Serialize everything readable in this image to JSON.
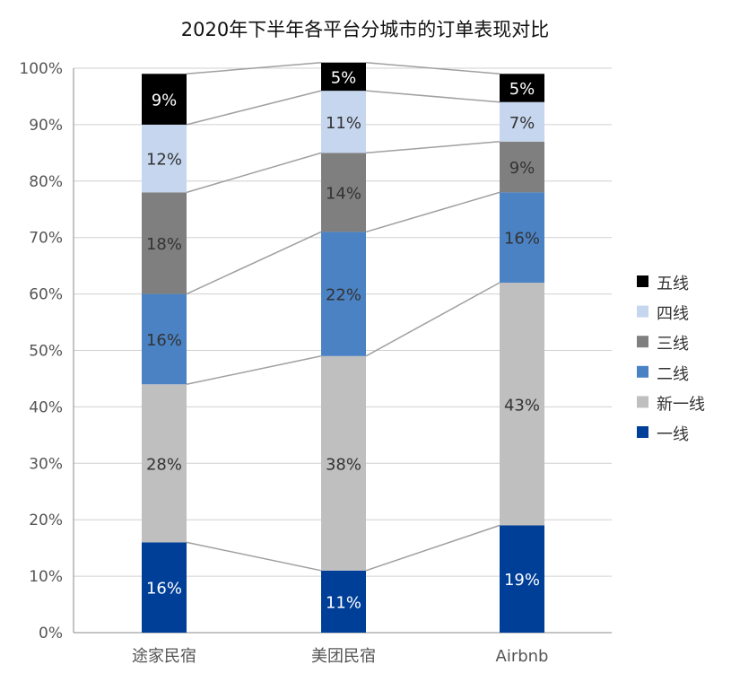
{
  "chart_data": {
    "type": "bar",
    "stacked": true,
    "percent": true,
    "title": "2020年下半年各平台分城市的订单表现对比",
    "categories": [
      "途家民宿",
      "美团民宿",
      "Airbnb"
    ],
    "y_ticks": [
      "0%",
      "10%",
      "20%",
      "30%",
      "40%",
      "50%",
      "60%",
      "70%",
      "80%",
      "90%",
      "100%"
    ],
    "ylim": [
      0,
      100
    ],
    "grid": true,
    "legend_position": "right",
    "series": [
      {
        "name": "一线",
        "color": "#003f98",
        "label_color": "#ffffff",
        "values": [
          16,
          11,
          19
        ],
        "labels": [
          "16%",
          "11%",
          "19%"
        ]
      },
      {
        "name": "新一线",
        "color": "#bfbfbf",
        "label_color": "#333333",
        "values": [
          28,
          38,
          43
        ],
        "labels": [
          "28%",
          "38%",
          "43%"
        ]
      },
      {
        "name": "二线",
        "color": "#4a82c4",
        "label_color": "#333333",
        "values": [
          16,
          22,
          16
        ],
        "labels": [
          "16%",
          "22%",
          "16%"
        ]
      },
      {
        "name": "三线",
        "color": "#7f7f7f",
        "label_color": "#333333",
        "values": [
          18,
          14,
          9
        ],
        "labels": [
          "18%",
          "14%",
          "9%"
        ]
      },
      {
        "name": "四线",
        "color": "#c5d6ee",
        "label_color": "#333333",
        "values": [
          12,
          11,
          7
        ],
        "labels": [
          "12%",
          "11%",
          "7%"
        ]
      },
      {
        "name": "五线",
        "color": "#000000",
        "label_color": "#ffffff",
        "values": [
          9,
          5,
          5
        ],
        "labels": [
          "9%",
          "5%",
          "5%"
        ]
      }
    ]
  }
}
